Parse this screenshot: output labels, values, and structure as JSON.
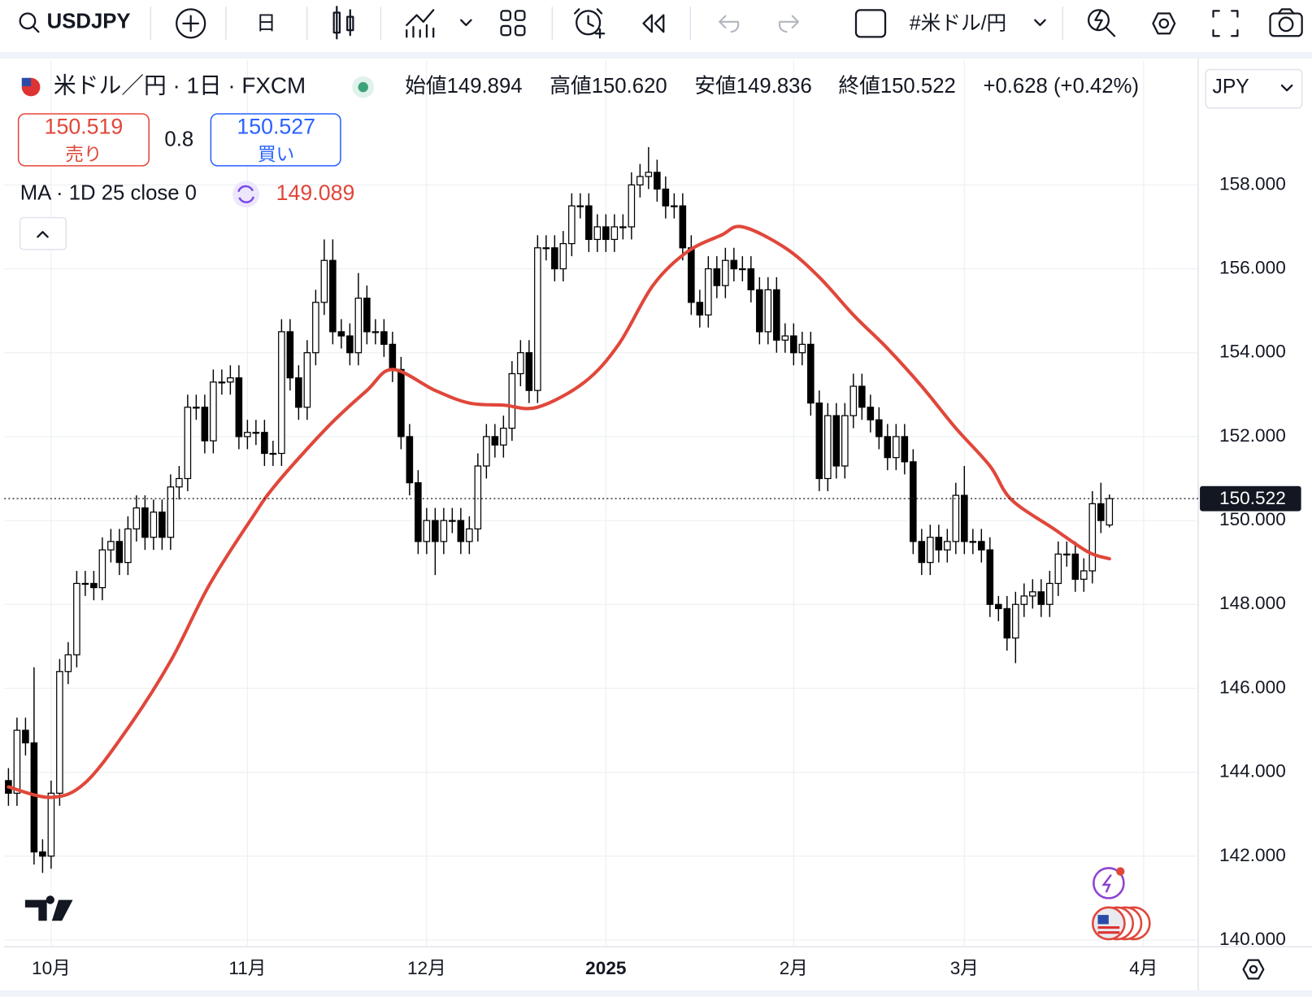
{
  "toolbar": {
    "symbol": "USDJPY",
    "interval": "日",
    "watchlist": "#米ドル/円"
  },
  "legend": {
    "title": "米ドル／円 · 1日 · FXCM",
    "ohlc": [
      {
        "label": "始値",
        "value": "149.894"
      },
      {
        "label": "高値",
        "value": "150.620"
      },
      {
        "label": "安値",
        "value": "149.836"
      },
      {
        "label": "終値",
        "value": "150.522"
      }
    ],
    "change": "+0.628 (+0.42%)",
    "sell_price": "150.519",
    "sell_label": "売り",
    "spread": "0.8",
    "buy_price": "150.527",
    "buy_label": "買い",
    "indicator": "MA · 1D 25 close 0"
  },
  "currency": "JPY",
  "chart_data": {
    "type": "candlestick",
    "open": [
      143.8,
      143.5,
      145,
      144.7,
      142.1,
      142,
      143.5,
      146.4,
      146.8,
      148.5,
      148.5,
      148.4,
      149.3,
      149.5,
      149,
      149.8,
      150.3,
      149.6,
      150.2,
      149.6,
      150.8,
      151,
      152.7,
      152.7,
      151.9,
      153.3,
      153.3,
      153.4,
      152,
      152.1,
      152.1,
      151.6,
      151.6,
      154.5,
      153.4,
      152.7,
      154,
      155.2,
      156.2,
      154.5,
      154.4,
      154,
      155.3,
      154.5,
      154.5,
      154.2,
      153.6,
      152,
      150.9,
      149.5,
      150,
      149.5,
      150,
      150,
      149.5,
      149.8,
      151.3,
      152,
      151.8,
      152.2,
      153.5,
      154,
      153.1,
      156.5,
      156.5,
      156,
      156.6,
      157.5,
      157.5,
      156.7,
      157,
      156.7,
      157,
      157,
      158,
      158.2,
      158.3,
      157.9,
      157.5,
      157.5,
      156.5,
      155.2,
      154.9,
      156,
      155.6,
      156.2,
      156,
      156,
      155.5,
      154.5,
      155.5,
      154.3,
      154.4,
      154,
      154.2,
      152.8,
      151,
      152.5,
      151.3,
      152.5,
      153.2,
      152.7,
      152.4,
      152,
      151.5,
      152,
      151.4,
      149.5,
      149,
      149.6,
      149.3,
      149.5,
      150.6,
      149.5,
      149.5,
      149.3,
      148,
      147.9,
      147.2,
      148,
      148.2,
      148.3,
      148,
      148.5,
      149.2,
      149.2,
      148.6,
      148.8,
      150.4,
      149.894
    ],
    "high": [
      144.1,
      145.3,
      145.3,
      146.5,
      142.4,
      143.8,
      146.7,
      147.1,
      148.8,
      148.8,
      148.8,
      149.6,
      149.8,
      149.8,
      150.1,
      150.6,
      150.6,
      150.5,
      150.5,
      151.1,
      151.3,
      153,
      153,
      153,
      153.6,
      153.6,
      153.7,
      153.7,
      152.4,
      152.4,
      152.4,
      151.9,
      154.8,
      154.8,
      153.7,
      154.3,
      155.5,
      156.7,
      156.7,
      154.8,
      154.7,
      155.9,
      155.6,
      154.8,
      154.8,
      154.5,
      153.9,
      152.3,
      151.2,
      150.3,
      150.3,
      150.3,
      150.3,
      150.3,
      150.1,
      151.6,
      152.3,
      152.3,
      152.5,
      153.8,
      154.3,
      154.3,
      156.8,
      156.8,
      156.8,
      156.9,
      157.8,
      157.8,
      157.8,
      157.3,
      157.3,
      157.3,
      157.3,
      158.3,
      158.5,
      158.9,
      158.6,
      158.2,
      157.8,
      157.8,
      156.8,
      155.5,
      156.3,
      156.3,
      156.5,
      156.5,
      156.3,
      156.3,
      155.8,
      155.8,
      155.8,
      154.7,
      154.7,
      154.5,
      154.5,
      153.1,
      152.8,
      152.8,
      152.8,
      153.5,
      153.5,
      153,
      152.7,
      152.3,
      152.3,
      152.3,
      151.7,
      149.8,
      149.9,
      149.9,
      149.8,
      150.9,
      151.3,
      149.8,
      149.8,
      149.6,
      148.2,
      148.2,
      148.3,
      148.5,
      148.6,
      148.6,
      148.8,
      149.5,
      149.5,
      149.5,
      149.1,
      150.7,
      150.9,
      150.62
    ],
    "low": [
      143.2,
      143.2,
      144.4,
      141.8,
      141.6,
      141.7,
      143.2,
      146.1,
      146.5,
      148.2,
      148.1,
      148.1,
      149,
      148.7,
      148.7,
      149.5,
      149.3,
      149.3,
      149.3,
      149.3,
      150.5,
      150.7,
      152.4,
      151.6,
      151.6,
      153,
      153,
      151.7,
      151.7,
      151.8,
      151.3,
      151.3,
      151.3,
      153.1,
      152.4,
      152.4,
      153.7,
      154.9,
      154.2,
      154.1,
      153.7,
      153.7,
      154.2,
      154.2,
      153.9,
      153.3,
      151.7,
      150.6,
      149.2,
      149.2,
      148.7,
      149.2,
      149.7,
      149.2,
      149.2,
      149.5,
      151,
      151.5,
      151.5,
      151.9,
      153.2,
      152.8,
      152.8,
      156.2,
      155.7,
      155.7,
      156.3,
      157.2,
      156.4,
      156.4,
      156.4,
      156.4,
      156.7,
      156.7,
      157.7,
      157.9,
      157.6,
      157.2,
      157.2,
      156.2,
      154.9,
      154.6,
      154.6,
      155.3,
      155.3,
      155.7,
      155.7,
      155.2,
      154.2,
      154.2,
      154,
      154,
      153.7,
      153.7,
      152.5,
      150.7,
      150.7,
      151,
      151,
      152.2,
      152.4,
      152.1,
      151.7,
      151.2,
      151.2,
      151.1,
      149.2,
      148.7,
      148.7,
      149,
      149,
      149.2,
      149.2,
      149.2,
      149,
      147.7,
      147.6,
      146.9,
      146.6,
      147.7,
      147.9,
      147.7,
      147.7,
      148.2,
      148.9,
      148.3,
      148.3,
      148.5,
      149.7,
      149.836
    ],
    "close": [
      143.5,
      145,
      144.7,
      142.1,
      142,
      143.5,
      146.4,
      146.8,
      148.5,
      148.5,
      148.4,
      149.3,
      149.5,
      149,
      149.8,
      150.3,
      149.6,
      150.2,
      149.6,
      150.8,
      151,
      152.7,
      152.7,
      151.9,
      153.3,
      153.3,
      153.4,
      152,
      152.1,
      152.1,
      151.6,
      151.6,
      154.5,
      153.4,
      152.7,
      154,
      155.2,
      156.2,
      154.5,
      154.4,
      154,
      155.3,
      154.5,
      154.5,
      154.2,
      153.6,
      152,
      150.9,
      149.5,
      150,
      149.5,
      150,
      150,
      149.5,
      149.8,
      151.3,
      152,
      151.8,
      152.2,
      153.5,
      154,
      153.1,
      156.5,
      156.5,
      156,
      156.6,
      157.5,
      157.5,
      156.7,
      157,
      156.7,
      157,
      157,
      158,
      158.2,
      158.3,
      157.9,
      157.5,
      157.5,
      156.5,
      155.2,
      154.9,
      156,
      155.6,
      156.2,
      156,
      156,
      155.5,
      154.5,
      155.5,
      154.3,
      154.4,
      154,
      154.2,
      152.8,
      151,
      152.5,
      151.3,
      152.5,
      153.2,
      152.7,
      152.4,
      152,
      151.5,
      152,
      151.4,
      149.5,
      149,
      149.6,
      149.3,
      149.5,
      150.6,
      149.5,
      149.5,
      149.3,
      148,
      147.9,
      147.2,
      148,
      148.2,
      148.3,
      148,
      148.5,
      149.2,
      149.2,
      148.6,
      148.8,
      150.4,
      150,
      150.522
    ],
    "up_color": "#ffffff",
    "down_color": "#000000",
    "ma": {
      "color": "#e0473a",
      "x": [
        0,
        5,
        9,
        14,
        19,
        23.5,
        28.5,
        31.5,
        37.5,
        42,
        45,
        50,
        54,
        58,
        62,
        67.5,
        71.5,
        75.5,
        79.5,
        83.5,
        86,
        91,
        95,
        99,
        103,
        107,
        111,
        115,
        117.5,
        122.5,
        126.5,
        129
      ],
      "values": [
        143.65,
        143.4,
        143.75,
        145.05,
        146.65,
        148.45,
        150.05,
        150.9,
        152.25,
        153.1,
        153.6,
        153.1,
        152.8,
        152.75,
        152.7,
        153.3,
        154.2,
        155.6,
        156.4,
        156.8,
        157,
        156.5,
        155.8,
        154.9,
        154.1,
        153.2,
        152.2,
        151.3,
        150.5,
        149.8,
        149.25,
        149.089
      ]
    },
    "xlim": [
      -0.5,
      139.4
    ],
    "xticks": [
      {
        "value": 5,
        "label": "10月"
      },
      {
        "value": 28,
        "label": "11月"
      },
      {
        "value": 49,
        "label": "12月"
      },
      {
        "value": 70,
        "label": "2025"
      },
      {
        "value": 92,
        "label": "2月"
      },
      {
        "value": 112,
        "label": "3月"
      },
      {
        "value": 133,
        "label": "4月"
      }
    ],
    "ylim": [
      139.86,
      160.97
    ],
    "yticks": [
      {
        "value": 140,
        "label": "140.000"
      },
      {
        "value": 142,
        "label": "142.000"
      },
      {
        "value": 144,
        "label": "144.000"
      },
      {
        "value": 146,
        "label": "146.000"
      },
      {
        "value": 148,
        "label": "148.000"
      },
      {
        "value": 150,
        "label": "150.000"
      },
      {
        "value": 152,
        "label": "152.000"
      },
      {
        "value": 154,
        "label": "154.000"
      },
      {
        "value": 156,
        "label": "156.000"
      },
      {
        "value": 158,
        "label": "158.000"
      }
    ],
    "grid": true
  }
}
